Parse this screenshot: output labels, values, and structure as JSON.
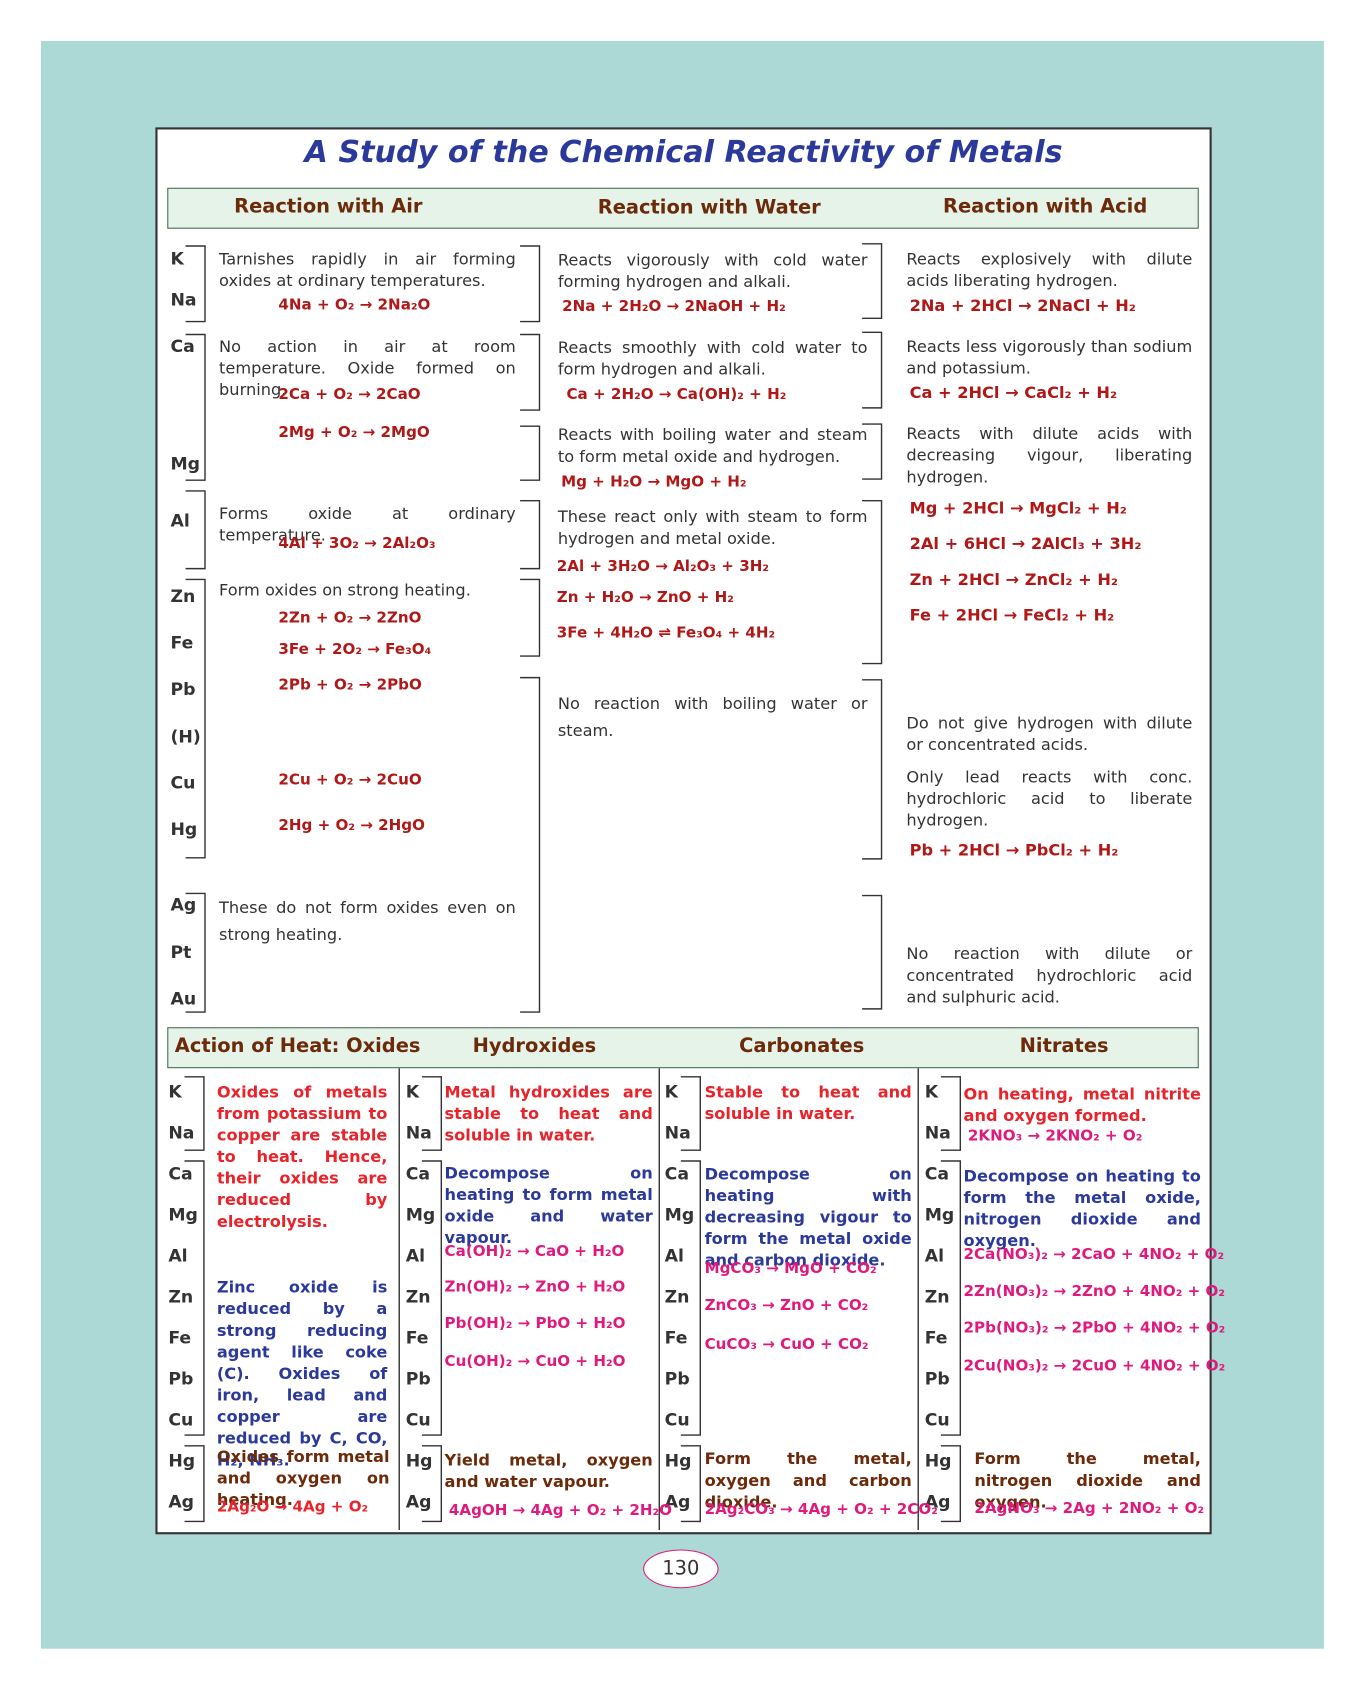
{
  "title": "A Study of the Chemical Reactivity of Metals",
  "top": {
    "headers": [
      "Reaction with Air",
      "Reaction with Water",
      "Reaction with Acid"
    ],
    "metals": [
      "K",
      "Na",
      "Ca",
      "Mg",
      "Al",
      "Zn",
      "Fe",
      "Pb",
      "(H)",
      "Cu",
      "Hg",
      "Ag",
      "Pt",
      "Au"
    ],
    "air": [
      {
        "text": "Tarnishes rapidly in air forming oxides at ordinary temperatures.",
        "equations": [
          "4Na + O₂ → 2Na₂O"
        ]
      },
      {
        "text": "No action in air at room temperature. Oxide formed on burning.",
        "equations": [
          "2Ca + O₂ → 2CaO",
          "2Mg + O₂ → 2MgO"
        ]
      },
      {
        "text": "Forms oxide at ordinary temperature.",
        "equations": [
          "4Al + 3O₂ → 2Al₂O₃"
        ]
      },
      {
        "text": "Form oxides on strong heating.",
        "equations": [
          "2Zn + O₂ → 2ZnO",
          "3Fe + 2O₂ → Fe₃O₄",
          "2Pb + O₂ → 2PbO",
          "2Cu + O₂ → 2CuO",
          "2Hg + O₂ → 2HgO"
        ]
      },
      {
        "text": "These do not form oxides even on strong heating."
      }
    ],
    "water": [
      {
        "text": "Reacts vigorously with cold water forming hydrogen and alkali.",
        "equations": [
          "2Na + 2H₂O → 2NaOH + H₂"
        ]
      },
      {
        "text": "Reacts smoothly with cold water to form hydrogen and alkali.",
        "equations": [
          "Ca + 2H₂O → Ca(OH)₂ + H₂"
        ]
      },
      {
        "text": "Reacts with boiling water and steam to form metal oxide and hydrogen.",
        "equations": [
          "Mg + H₂O → MgO + H₂"
        ]
      },
      {
        "text": "These react only with steam to form hydrogen and metal oxide.",
        "equations": [
          "2Al + 3H₂O → Al₂O₃ + 3H₂",
          "Zn + H₂O → ZnO + H₂",
          "3Fe + 4H₂O ⇌ Fe₃O₄ + 4H₂"
        ]
      },
      {
        "text": "No reaction with boiling water or steam."
      }
    ],
    "acid": [
      {
        "text": "Reacts explosively with dilute acids liberating hydrogen.",
        "equations": [
          "2Na + 2HCl → 2NaCl + H₂"
        ]
      },
      {
        "text": "Reacts less vigorously than sodium and potassium.",
        "equations": [
          "Ca + 2HCl → CaCl₂ + H₂"
        ]
      },
      {
        "text": "Reacts with dilute acids with decreasing vigour, liberating hydrogen.",
        "equations": [
          "Mg + 2HCl → MgCl₂ + H₂",
          "2Al + 6HCl → 2AlCl₃ + 3H₂",
          "Zn + 2HCl → ZnCl₂ + H₂",
          "Fe + 2HCl → FeCl₂ + H₂"
        ]
      },
      {
        "text": "Do not give hydrogen with dilute or concentrated acids."
      },
      {
        "text": "Only lead reacts with conc. hydrochloric acid to liberate hydrogen.",
        "equations": [
          "Pb + 2HCl → PbCl₂ + H₂"
        ]
      },
      {
        "text": "No reaction with dilute or concentrated hydrochloric acid and sulphuric acid."
      }
    ]
  },
  "bottom": {
    "headers": [
      "Action of Heat: Oxides",
      "Hydroxides",
      "Carbonates",
      "Nitrates"
    ],
    "metals": [
      "K",
      "Na",
      "Ca",
      "Mg",
      "Al",
      "Zn",
      "Fe",
      "Pb",
      "Cu",
      "Hg",
      "Ag"
    ],
    "oxides": {
      "stable": "Oxides of metals from potassium to copper are stable to heat. Hence, their oxides are reduced by electrolysis.",
      "reduced": "Zinc oxide is reduced by a strong reducing agent like coke (C). Oxides of iron, lead and copper are reduced by C, CO, H₂, NH₃.",
      "noble": "Oxides form metal and oxygen on heating.",
      "noble_equation": "2Ag₂O → 4Ag + O₂"
    },
    "hydroxides": {
      "stable": "Metal hydroxides are stable to heat and soluble in water.",
      "decompose": "Decompose on heating to form metal oxide and water vapour.",
      "equations": [
        "Ca(OH)₂ → CaO + H₂O",
        "Zn(OH)₂ → ZnO + H₂O",
        "Pb(OH)₂ → PbO + H₂O",
        "Cu(OH)₂ → CuO + H₂O"
      ],
      "noble": "Yield metal, oxygen and water vapour.",
      "noble_equation": "4AgOH → 4Ag + O₂ + 2H₂O"
    },
    "carbonates": {
      "stable": "Stable to heat and soluble in water.",
      "decompose": "Decompose on heating with decreasing vigour to form the metal oxide and carbon dioxide.",
      "equations": [
        "MgCO₃ → MgO + CO₂",
        "ZnCO₃ → ZnO + CO₂",
        "CuCO₃ → CuO + CO₂"
      ],
      "noble": "Form the metal, oxygen and carbon dioxide.",
      "noble_equation": "2Ag₂CO₃ → 4Ag + O₂ + 2CO₂"
    },
    "nitrates": {
      "stable": "On heating, metal nitrite and oxygen formed.",
      "stable_equation": "2KNO₃ → 2KNO₂ + O₂",
      "decompose": "Decompose on heating to form the metal oxide, nitrogen dioxide and oxygen.",
      "equations": [
        "2Ca(NO₃)₂ → 2CaO + 4NO₂ + O₂",
        "2Zn(NO₃)₂ → 2ZnO + 4NO₂ + O₂",
        "2Pb(NO₃)₂ → 2PbO + 4NO₂ + O₂",
        "2Cu(NO₃)₂ → 2CuO + 4NO₂ + O₂"
      ],
      "noble": "Form the metal, nitrogen dioxide and oxygen.",
      "noble_equation": "2AgNO₃ → 2Ag + 2NO₂ + O₂"
    }
  },
  "page_number": "130"
}
